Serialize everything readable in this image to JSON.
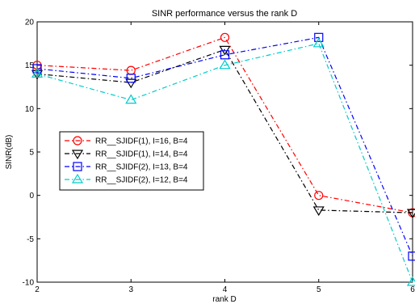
{
  "chart_data": {
    "type": "line",
    "title": "SINR performance versus the rank D",
    "xlabel": "rank D",
    "ylabel": "SINR(dB)",
    "x": [
      2,
      3,
      4,
      5,
      6
    ],
    "xlim": [
      2,
      6
    ],
    "ylim": [
      -10,
      20
    ],
    "xticks": [
      "2",
      "3",
      "4",
      "5",
      "6"
    ],
    "yticks": [
      "-10",
      "-5",
      "0",
      "5",
      "10",
      "15",
      "20"
    ],
    "grid": false,
    "legend_position": "left",
    "series": [
      {
        "name": "RR__SJIDF(1), I=16, B=4",
        "color": "#ff0000",
        "marker": "circle",
        "values": [
          15.0,
          14.4,
          18.2,
          0.0,
          -2.0
        ]
      },
      {
        "name": "RR__SJIDF(1), I=14, B=4",
        "color": "#000000",
        "marker": "triangle-down",
        "values": [
          14.0,
          13.0,
          16.8,
          -1.7,
          -2.0
        ]
      },
      {
        "name": "RR__SJIDF(2), I=13, B=4",
        "color": "#0000ff",
        "marker": "square",
        "values": [
          14.6,
          13.5,
          16.2,
          18.2,
          -7.0
        ]
      },
      {
        "name": "RR__SJIDF(2), I=12, B=4",
        "color": "#00cccc",
        "marker": "triangle-up",
        "values": [
          14.0,
          11.0,
          15.0,
          17.5,
          -10.0
        ]
      }
    ]
  }
}
